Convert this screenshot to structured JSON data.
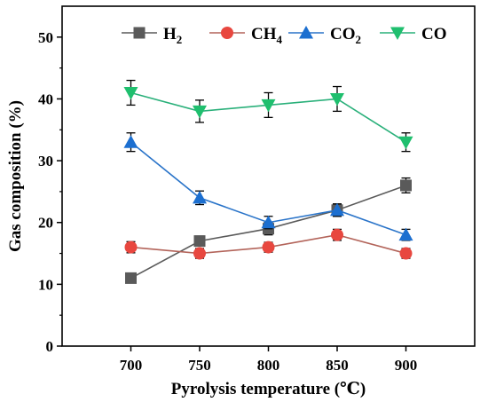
{
  "chart_data": {
    "type": "line",
    "xlabel": "Pyrolysis temperature (℃)",
    "ylabel": "Gas composition (%)",
    "x": [
      700,
      750,
      800,
      850,
      900
    ],
    "xlim": [
      650,
      950
    ],
    "ylim": [
      0,
      55
    ],
    "yticks": [
      0,
      10,
      20,
      30,
      40,
      50
    ],
    "grid": false,
    "legend_position": "top-right",
    "series": [
      {
        "name": "H",
        "sub": "2",
        "marker": "square",
        "color": "#5a5a5a",
        "line_color": "#5a5a5a",
        "values": [
          11,
          17,
          19,
          22,
          26
        ],
        "errors": [
          0.6,
          0.8,
          1.0,
          1.0,
          1.2
        ]
      },
      {
        "name": "CH",
        "sub": "4",
        "marker": "circle",
        "color": "#e8473f",
        "line_color": "#b3645a",
        "values": [
          16,
          15,
          16,
          18,
          15
        ],
        "errors": [
          0.9,
          0.8,
          0.8,
          0.9,
          0.8
        ]
      },
      {
        "name": "CO",
        "sub": "2",
        "marker": "triangle-up",
        "color": "#1c6fd0",
        "line_color": "#2a74c9",
        "values": [
          33,
          24,
          20,
          22,
          18
        ],
        "errors": [
          1.5,
          1.1,
          1.0,
          1.0,
          0.9
        ]
      },
      {
        "name": "CO",
        "sub": "",
        "marker": "triangle-down",
        "color": "#1fbf6e",
        "line_color": "#2ab07a",
        "values": [
          41,
          38,
          39,
          40,
          33
        ],
        "errors": [
          2.0,
          1.8,
          2.0,
          2.0,
          1.5
        ]
      }
    ]
  }
}
